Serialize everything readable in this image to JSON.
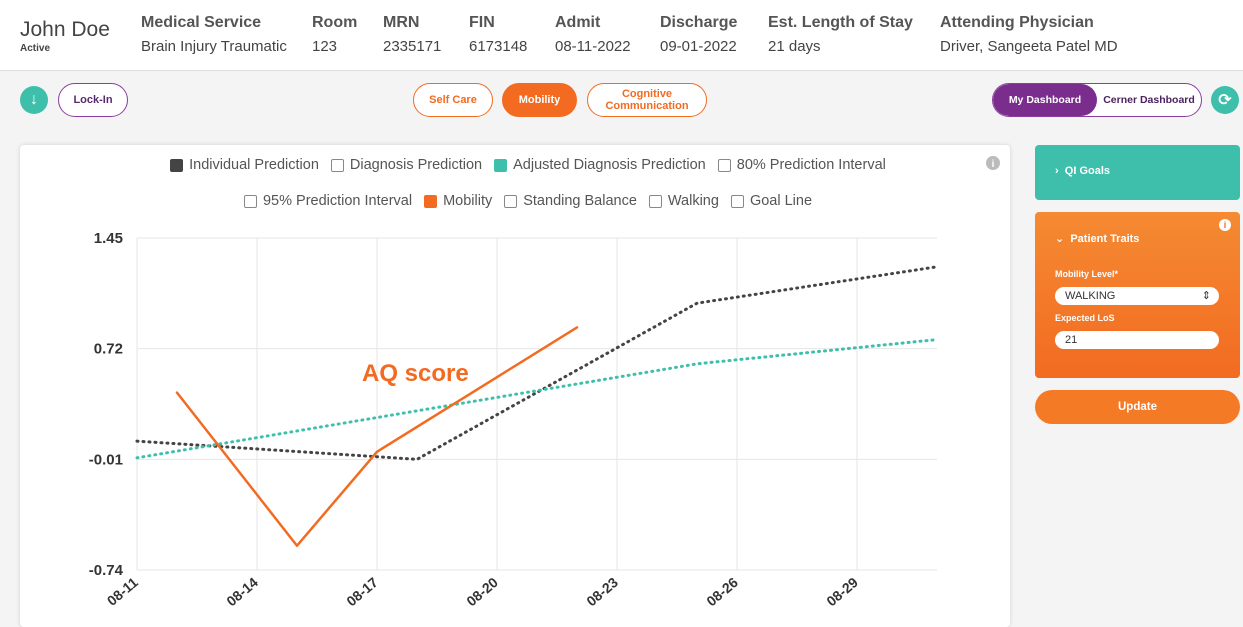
{
  "header": {
    "patient_name": "John Doe",
    "patient_status": "Active",
    "fields": [
      {
        "label": "Medical Service",
        "value": "Brain Injury Traumatic"
      },
      {
        "label": "Room",
        "value": "123"
      },
      {
        "label": "MRN",
        "value": "2335171"
      },
      {
        "label": "FIN",
        "value": "6173148"
      },
      {
        "label": "Admit",
        "value": "08-11-2022"
      },
      {
        "label": "Discharge",
        "value": "09-01-2022"
      },
      {
        "label": "Est. Length of Stay",
        "value": "21 days"
      },
      {
        "label": "Attending Physician",
        "value": "Driver, Sangeeta Patel MD"
      }
    ]
  },
  "toolbar": {
    "lock_button": "Lock-In",
    "tabs": [
      {
        "label": "Self Care",
        "active": false
      },
      {
        "label": "Mobility",
        "active": true
      },
      {
        "label": "Cognitive Communication",
        "active": false
      }
    ],
    "dashboards": [
      {
        "label": "My Dashboard",
        "active": true
      },
      {
        "label": "Cerner Dashboard",
        "active": false
      }
    ]
  },
  "chart_data": {
    "type": "line",
    "annotation": "AQ score",
    "xlim": [
      "08-11",
      "08-31"
    ],
    "xticks": [
      "08-11",
      "08-14",
      "08-17",
      "08-20",
      "08-23",
      "08-26",
      "08-29"
    ],
    "ylim": [
      -0.74,
      1.45
    ],
    "yticks": [
      1.45,
      0.72,
      -0.01,
      -0.74
    ],
    "grid": true,
    "series": [
      {
        "name": "Individual Prediction",
        "checked": true,
        "color": "#444444",
        "dashed": true,
        "x": [
          "08-11",
          "08-18",
          "08-25",
          "08-31"
        ],
        "values": [
          0.11,
          -0.01,
          1.02,
          1.26
        ]
      },
      {
        "name": "Diagnosis Prediction",
        "checked": false
      },
      {
        "name": "Adjusted Diagnosis Prediction",
        "checked": true,
        "color": "#3dbfab",
        "dashed": true,
        "x": [
          "08-11",
          "08-25",
          "08-31"
        ],
        "values": [
          0.0,
          0.62,
          0.78
        ]
      },
      {
        "name": "80% Prediction Interval",
        "checked": false
      },
      {
        "name": "95% Prediction Interval",
        "checked": false
      },
      {
        "name": "Mobility",
        "checked": true,
        "color": "#f26b21",
        "dashed": false,
        "x": [
          "08-12",
          "08-15",
          "08-17",
          "08-22"
        ],
        "values": [
          0.43,
          -0.58,
          0.04,
          0.86
        ]
      },
      {
        "name": "Standing Balance",
        "checked": false
      },
      {
        "name": "Walking",
        "checked": false
      },
      {
        "name": "Goal Line",
        "checked": false
      }
    ]
  },
  "side_panel": {
    "qi_goals": "QI Goals",
    "patient_traits": "Patient Traits",
    "mobility_level_label": "Mobility Level*",
    "mobility_level_value": "WALKING",
    "expected_los_label": "Expected LoS",
    "expected_los_value": "21",
    "update_button": "Update"
  }
}
